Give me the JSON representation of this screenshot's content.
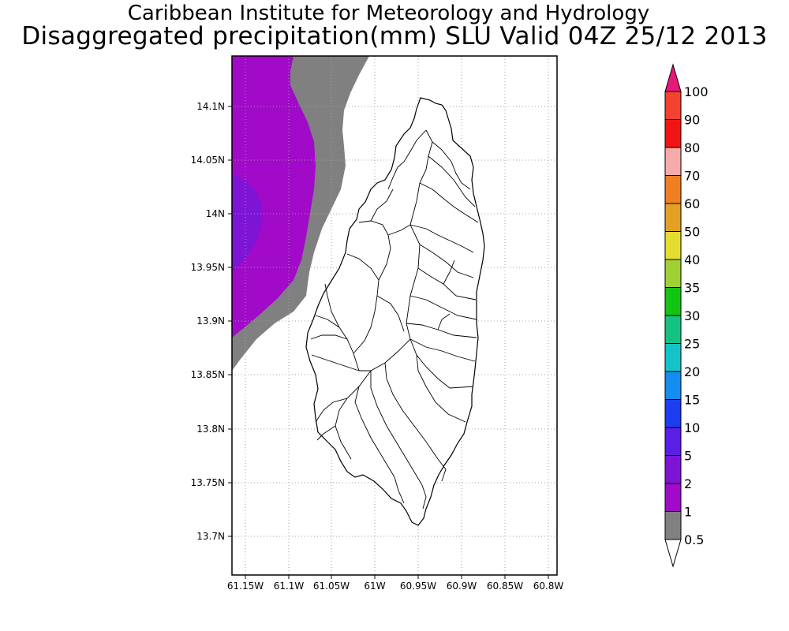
{
  "header": {
    "title": "Caribbean Institute for Meteorology and Hydrology",
    "subtitle": "Disaggregated precipitation(mm) SLU Valid 04Z 25/12 2013"
  },
  "map": {
    "lat_labels": [
      "14.1N",
      "14.05N",
      "14N",
      "13.95N",
      "13.9N",
      "13.85N",
      "13.8N",
      "13.75N",
      "13.7N"
    ],
    "lon_labels": [
      "61.15W",
      "61.1W",
      "61.05W",
      "61W",
      "60.95W",
      "60.9W",
      "60.85W",
      "60.8W"
    ]
  },
  "colorbar": {
    "labels": [
      "100",
      "90",
      "80",
      "70",
      "60",
      "50",
      "40",
      "35",
      "30",
      "25",
      "20",
      "15",
      "10",
      "5",
      "2",
      "1",
      "0.5"
    ],
    "colors": {
      "above_100": "#e6197a",
      "90-100": "#f5412f",
      "80-90": "#f01414",
      "70-80": "#f7aaaa",
      "60-70": "#f07f23",
      "50-60": "#e2a122",
      "40-50": "#e5dc32",
      "35-40": "#9fd135",
      "30-35": "#14c414",
      "25-30": "#14c382",
      "20-25": "#14c3c8",
      "15-20": "#148cf0",
      "10-15": "#1e3cf0",
      "5-10": "#5a1ee6",
      "2-5": "#7d14d6",
      "1-2": "#a00ac8",
      "0.5-1": "#808080",
      "below_0.5": "#ffffff"
    }
  }
}
